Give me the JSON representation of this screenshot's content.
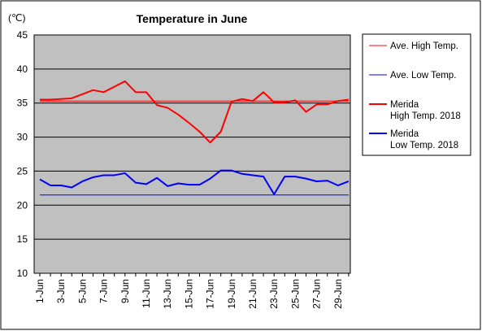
{
  "chart_data": {
    "type": "line",
    "title": "Temperature in June",
    "unit_label": "(℃)",
    "ylim": [
      10,
      45
    ],
    "yticks": [
      10,
      15,
      20,
      25,
      30,
      35,
      40,
      45
    ],
    "grid": true,
    "legend_position": "right",
    "x": [
      1,
      2,
      3,
      4,
      5,
      6,
      7,
      8,
      9,
      10,
      11,
      12,
      13,
      14,
      15,
      16,
      17,
      18,
      19,
      20,
      21,
      22,
      23,
      24,
      25,
      26,
      27,
      28,
      29,
      30
    ],
    "xtick_labels": [
      "1-Jun",
      "3-Jun",
      "5-Jun",
      "7-Jun",
      "9-Jun",
      "11-Jun",
      "13-Jun",
      "15-Jun",
      "17-Jun",
      "19-Jun",
      "21-Jun",
      "23-Jun",
      "25-Jun",
      "27-Jun",
      "29-Jun"
    ],
    "xtick_days": [
      1,
      3,
      5,
      7,
      9,
      11,
      13,
      15,
      17,
      19,
      21,
      23,
      25,
      27,
      29
    ],
    "series": [
      {
        "name": "Ave. High Temp.",
        "color": "#ff0000",
        "stroke": "thin",
        "values": [
          35.3,
          35.3,
          35.3,
          35.3,
          35.3,
          35.3,
          35.3,
          35.3,
          35.3,
          35.3,
          35.3,
          35.3,
          35.3,
          35.3,
          35.3,
          35.3,
          35.3,
          35.3,
          35.3,
          35.3,
          35.3,
          35.3,
          35.3,
          35.3,
          35.3,
          35.3,
          35.3,
          35.3,
          35.3,
          35.3
        ]
      },
      {
        "name": "Ave. Low Temp.",
        "color": "#0000ff",
        "stroke": "thin",
        "values": [
          21.5,
          21.5,
          21.5,
          21.5,
          21.5,
          21.5,
          21.5,
          21.5,
          21.5,
          21.5,
          21.5,
          21.5,
          21.5,
          21.5,
          21.5,
          21.5,
          21.5,
          21.5,
          21.5,
          21.5,
          21.5,
          21.5,
          21.5,
          21.5,
          21.5,
          21.5,
          21.5,
          21.5,
          21.5,
          21.5
        ]
      },
      {
        "name": "Merida High Temp. 2018",
        "legend_lines": [
          "Merida",
          "High Temp. 2018"
        ],
        "color": "#ff0000",
        "stroke": "thick",
        "values": [
          35.5,
          35.5,
          35.6,
          35.7,
          36.3,
          36.9,
          36.6,
          37.4,
          38.2,
          36.6,
          36.6,
          34.7,
          34.3,
          33.3,
          32.1,
          30.8,
          29.2,
          30.8,
          35.2,
          35.6,
          35.3,
          36.6,
          35.1,
          35.1,
          35.4,
          33.7,
          34.8,
          34.8,
          35.3,
          35.5
        ]
      },
      {
        "name": "Merida Low Temp. 2018",
        "legend_lines": [
          "Merida",
          "Low Temp. 2018"
        ],
        "color": "#0000ff",
        "stroke": "thick",
        "values": [
          23.8,
          22.9,
          22.9,
          22.6,
          23.5,
          24.1,
          24.4,
          24.4,
          24.7,
          23.3,
          23.1,
          24.0,
          22.8,
          23.2,
          23.0,
          23.0,
          23.9,
          25.1,
          25.1,
          24.6,
          24.4,
          24.2,
          21.6,
          24.2,
          24.2,
          23.9,
          23.5,
          23.6,
          22.9,
          23.5
        ]
      }
    ]
  }
}
